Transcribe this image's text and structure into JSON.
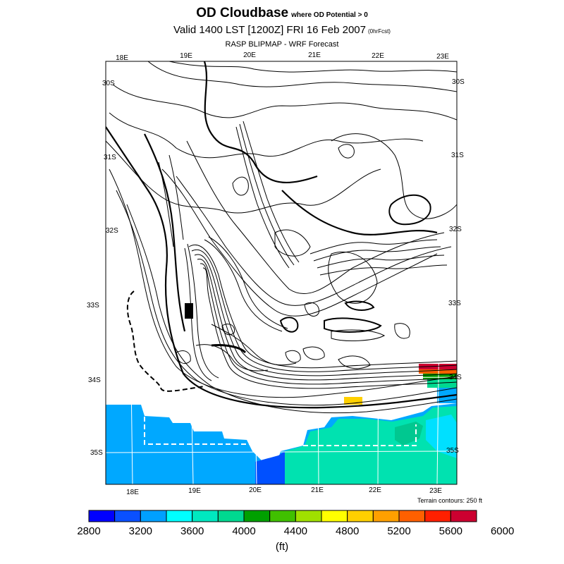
{
  "title": {
    "main": "OD Cloudbase",
    "main_note": "where OD Potential > 0"
  },
  "subtitle": {
    "text": "Valid 1400 LST [1200Z] FRI 16 Feb 2007",
    "note": "(0hrFcst)"
  },
  "source": "RASP BLIPMAP - WRF Forecast",
  "map": {
    "lon_top": [
      "18E",
      "19E",
      "20E",
      "21E",
      "22E",
      "23E"
    ],
    "lon_bottom": [
      "18E",
      "19E",
      "20E",
      "21E",
      "22E",
      "23E"
    ],
    "lat_left": [
      "30S",
      "31S",
      "32S",
      "33S",
      "34S",
      "35S"
    ],
    "lat_right": [
      "30S",
      "31S",
      "32S",
      "33S",
      "34S",
      "35S"
    ]
  },
  "terrain_note": "Terrain contours: 250 ft",
  "colorbar": {
    "colors": [
      "#0000ff",
      "#0a50ff",
      "#00a0ff",
      "#00ffff",
      "#00e8c0",
      "#00d890",
      "#00a000",
      "#40c000",
      "#a0e000",
      "#ffff00",
      "#ffd000",
      "#ffa000",
      "#ff6000",
      "#ff2000",
      "#cc0030"
    ],
    "tick_labels": [
      "2800",
      "3200",
      "3600",
      "4000",
      "4400",
      "4800",
      "5200",
      "5600",
      "6000"
    ],
    "units": "(ft)"
  }
}
